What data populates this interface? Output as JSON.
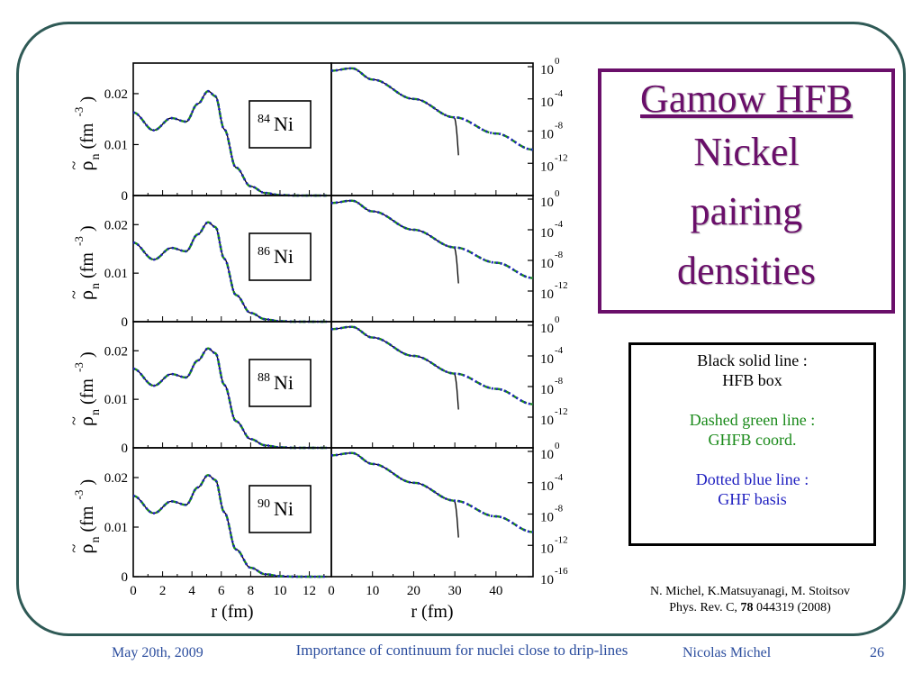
{
  "title": {
    "line1": "Gamow HFB",
    "line2": "Nickel",
    "line3": "pairing",
    "line4": "densities"
  },
  "legend": {
    "black_line1": "Black solid line :",
    "black_line2": "HFB box",
    "green_line1": "Dashed green line :",
    "green_line2": "GHFB coord.",
    "blue_line1": "Dotted blue line :",
    "blue_line2": "GHF basis"
  },
  "citation": {
    "line1": "N. Michel, K.Matsuyanagi, M. Stoitsov",
    "line2_prefix": "Phys. Rev. C, ",
    "volume": "78",
    "line2_suffix": "  044319 (2008)"
  },
  "footer": {
    "date": "May 20th, 2009",
    "talk_title": "Importance of continuum for nuclei close to drip-lines",
    "author": "Nicolas Michel",
    "page": "26"
  },
  "colors": {
    "frame": "#2f5a56",
    "title": "#6a0f6a",
    "green": "#1a8a1a",
    "blue": "#1f1fc0",
    "footer": "#2b4d9e"
  },
  "chart_data": {
    "type": "line",
    "panels": [
      {
        "nucleus_mass": "84",
        "nucleus_symbol": "Ni"
      },
      {
        "nucleus_mass": "86",
        "nucleus_symbol": "Ni"
      },
      {
        "nucleus_mass": "88",
        "nucleus_symbol": "Ni"
      },
      {
        "nucleus_mass": "90",
        "nucleus_symbol": "Ni"
      }
    ],
    "ylabel_main": "ρ",
    "ylabel_tilde": "~",
    "ylabel_sub": "n",
    "ylabel_unit": "(fm",
    "ylabel_exp": "-3",
    "ylabel_close": ")",
    "left_yticks": [
      "0.02",
      "0.01",
      "0"
    ],
    "left_xticks": [
      "0",
      "2",
      "4",
      "6",
      "8",
      "10",
      "12"
    ],
    "left_xlabel": "r (fm)",
    "left_xlim": [
      0,
      13.5
    ],
    "left_ylim": [
      0,
      0.026
    ],
    "right_xticks": [
      "0",
      "10",
      "20",
      "30",
      "40"
    ],
    "right_xlabel": "r (fm)",
    "right_xlim": [
      0,
      49
    ],
    "log_base": "10",
    "right_yexps": [
      "0",
      "-4",
      "-8",
      "-12"
    ],
    "right_yexp_last": "-16",
    "right_ylim_exp": [
      -16,
      0
    ],
    "left_series": {
      "r": [
        0,
        1.4,
        2.6,
        3.6,
        4.4,
        5.1,
        5.6,
        6.2,
        7.0,
        8.0,
        9.0,
        10.0,
        11.0,
        12.0,
        13.0
      ],
      "rho": [
        0.0163,
        0.0128,
        0.0152,
        0.0145,
        0.018,
        0.0205,
        0.0195,
        0.013,
        0.0055,
        0.0018,
        0.0005,
        0.0001,
        0.0,
        0.0,
        0.0
      ]
    },
    "right_series": {
      "r_exp": [
        [
          0,
          -0.5
        ],
        [
          5,
          -0.2
        ],
        [
          10,
          -1.6
        ],
        [
          20,
          -4.0
        ],
        [
          30,
          -6.3
        ],
        [
          40,
          -8.3
        ],
        [
          49,
          -10.3
        ]
      ],
      "box_end_r": 31,
      "box_end_exp": -11.0
    },
    "series": [
      {
        "name": "HFB box",
        "style": "solid",
        "color": "#000000"
      },
      {
        "name": "GHFB coord.",
        "style": "dashed",
        "color": "#1a8a1a"
      },
      {
        "name": "GHF basis",
        "style": "dotted",
        "color": "#1f1fc0"
      }
    ]
  }
}
